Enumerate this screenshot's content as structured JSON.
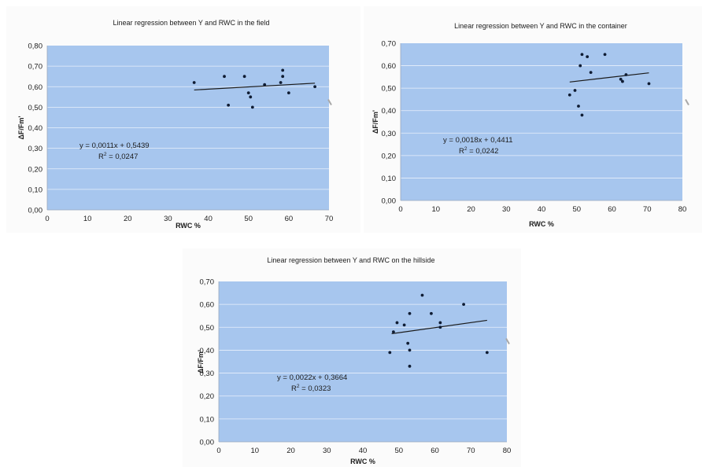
{
  "colors": {
    "plot_background": "#a7c6ee",
    "grid": "#e8f0fb",
    "point": "#0f1c33",
    "trend_line": "#1a1a1a",
    "text": "#1c1c1c"
  },
  "chart_data": [
    {
      "id": "field",
      "type": "scatter",
      "title": "Linear regression between Y and RWC in the field",
      "xlabel": "RWC %",
      "ylabel": "ΔF/Fm'",
      "xlim": [
        0,
        70
      ],
      "ylim": [
        0,
        0.8
      ],
      "x_ticks": [
        "0",
        "10",
        "20",
        "30",
        "40",
        "50",
        "60",
        "70"
      ],
      "y_ticks": [
        "0,00",
        "0,10",
        "0,20",
        "0,30",
        "0,40",
        "0,50",
        "0,60",
        "0,70",
        "0,80"
      ],
      "grid": "horizontal",
      "points": [
        {
          "x": 36.5,
          "y": 0.62
        },
        {
          "x": 44,
          "y": 0.65
        },
        {
          "x": 45,
          "y": 0.51
        },
        {
          "x": 49,
          "y": 0.65
        },
        {
          "x": 50,
          "y": 0.57
        },
        {
          "x": 50.5,
          "y": 0.55
        },
        {
          "x": 51,
          "y": 0.5
        },
        {
          "x": 54,
          "y": 0.61
        },
        {
          "x": 58,
          "y": 0.62
        },
        {
          "x": 58.5,
          "y": 0.65
        },
        {
          "x": 58.5,
          "y": 0.68
        },
        {
          "x": 60,
          "y": 0.57
        },
        {
          "x": 66.5,
          "y": 0.6
        }
      ],
      "trendline": {
        "slope": 0.0011,
        "intercept": 0.5439,
        "x_range": [
          36.5,
          66.5
        ]
      },
      "equation": "y = 0,0011x + 0,5439",
      "r2_label": "R",
      "r2_exp": "2",
      "r2_value": " = 0,0247"
    },
    {
      "id": "container",
      "type": "scatter",
      "title": "Linear regression between Y and RWC in the container",
      "xlabel": "RWC %",
      "ylabel": "ΔF/Fm'",
      "xlim": [
        0,
        80
      ],
      "ylim": [
        0,
        0.7
      ],
      "x_ticks": [
        "0",
        "10",
        "20",
        "30",
        "40",
        "50",
        "60",
        "70",
        "80"
      ],
      "y_ticks": [
        "0,00",
        "0,10",
        "0,20",
        "0,30",
        "0,40",
        "0,50",
        "0,60",
        "0,70"
      ],
      "grid": "horizontal",
      "points": [
        {
          "x": 48,
          "y": 0.47
        },
        {
          "x": 49.5,
          "y": 0.49
        },
        {
          "x": 50.5,
          "y": 0.42
        },
        {
          "x": 51,
          "y": 0.6
        },
        {
          "x": 51.5,
          "y": 0.65
        },
        {
          "x": 51.5,
          "y": 0.38
        },
        {
          "x": 53,
          "y": 0.64
        },
        {
          "x": 54,
          "y": 0.57
        },
        {
          "x": 58,
          "y": 0.65
        },
        {
          "x": 62.5,
          "y": 0.54
        },
        {
          "x": 63,
          "y": 0.53
        },
        {
          "x": 64,
          "y": 0.56
        },
        {
          "x": 70.5,
          "y": 0.52
        }
      ],
      "trendline": {
        "slope": 0.0018,
        "intercept": 0.4411,
        "x_range": [
          48,
          70.5
        ]
      },
      "equation": "y = 0,0018x + 0,4411",
      "r2_label": "R",
      "r2_exp": "2",
      "r2_value": " = 0,0242"
    },
    {
      "id": "hillside",
      "type": "scatter",
      "title": "Linear regression between Y and RWC on the hillside",
      "xlabel": "RWC %",
      "ylabel": "ΔF/Fm'",
      "xlim": [
        0,
        80
      ],
      "ylim": [
        0,
        0.7
      ],
      "x_ticks": [
        "0",
        "10",
        "20",
        "30",
        "40",
        "50",
        "60",
        "70",
        "80"
      ],
      "y_ticks": [
        "0,00",
        "0,10",
        "0,20",
        "0,30",
        "0,40",
        "0,50",
        "0,60",
        "0,70"
      ],
      "grid": "horizontal",
      "points": [
        {
          "x": 47.5,
          "y": 0.39
        },
        {
          "x": 48.5,
          "y": 0.48
        },
        {
          "x": 49.5,
          "y": 0.52
        },
        {
          "x": 51.5,
          "y": 0.51
        },
        {
          "x": 52.5,
          "y": 0.43
        },
        {
          "x": 53,
          "y": 0.4
        },
        {
          "x": 53,
          "y": 0.56
        },
        {
          "x": 53,
          "y": 0.33
        },
        {
          "x": 56.5,
          "y": 0.64
        },
        {
          "x": 59,
          "y": 0.56
        },
        {
          "x": 61.5,
          "y": 0.5
        },
        {
          "x": 61.5,
          "y": 0.52
        },
        {
          "x": 68,
          "y": 0.6
        },
        {
          "x": 74.5,
          "y": 0.39
        }
      ],
      "trendline": {
        "slope": 0.0022,
        "intercept": 0.3664,
        "x_range": [
          48,
          74.5
        ]
      },
      "equation": "y = 0,0022x + 0,3664",
      "r2_label": "R",
      "r2_exp": "2",
      "r2_value": " = 0,0323"
    }
  ]
}
